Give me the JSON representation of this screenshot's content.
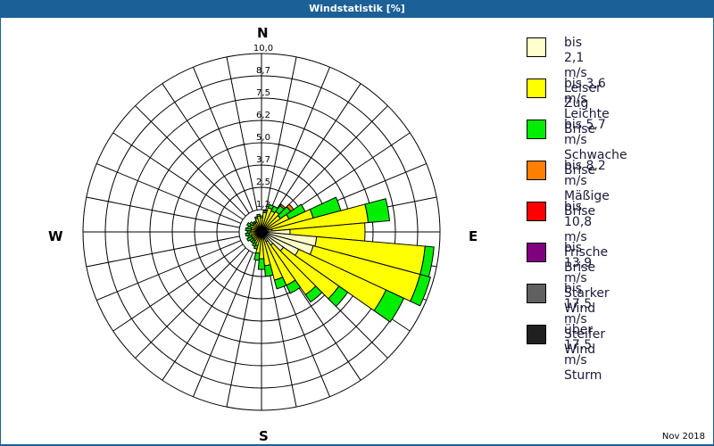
{
  "title": "Windstatistik [%]",
  "footer": {
    "date": "Nov 2018"
  },
  "compass": {
    "n": "N",
    "e": "E",
    "s": "S",
    "w": "W"
  },
  "legend": [
    {
      "line1": "bis 2,1 m/s",
      "line2": "Leiser Zug",
      "color": "#ffffcc"
    },
    {
      "line1": "bis 3,6 m/s",
      "line2": "Leichte Brise",
      "color": "#ffff00"
    },
    {
      "line1": "bis 5,7 m/s",
      "line2": "Schwache Brise",
      "color": "#00ee00"
    },
    {
      "line1": "bis 8,2 m/s",
      "line2": "Mäßige Brise",
      "color": "#ff8000"
    },
    {
      "line1": "bis 10,8 m/s",
      "line2": "Frische Brise",
      "color": "#ff0000"
    },
    {
      "line1": "bis 13,9 m/s",
      "line2": "Starker Wind",
      "color": "#800080"
    },
    {
      "line1": "bis 17,5 m/s",
      "line2": "Steifer Wind",
      "color": "#606060"
    },
    {
      "line1": "über 17,5 m/s",
      "line2": "Sturm",
      "color": "#202020"
    }
  ],
  "chart_data": {
    "type": "wind-rose",
    "title": "Windstatistik [%]",
    "unit": "%",
    "radial_ticks": [
      "1,2",
      "2,5",
      "3,7",
      "5,0",
      "6,2",
      "7,5",
      "8,7",
      "10,0"
    ],
    "radial_tick_values": [
      1.25,
      2.5,
      3.75,
      5.0,
      6.25,
      7.5,
      8.75,
      10.0
    ],
    "rmax": 10.0,
    "grid_spokes": 32,
    "sector_width_deg": 10,
    "classes": [
      "bis 2,1 m/s",
      "bis 3,6 m/s",
      "bis 5,7 m/s",
      "bis 8,2 m/s",
      "bis 10,8 m/s",
      "bis 13,9 m/s",
      "bis 17,5 m/s",
      "über 17,5 m/s"
    ],
    "colors": [
      "#ffffcc",
      "#ffff00",
      "#00ee00",
      "#ff8000",
      "#ff0000",
      "#800080",
      "#606060",
      "#202020"
    ],
    "sectors": [
      {
        "dir": 0,
        "values": [
          0.3,
          0.5,
          0.1,
          0,
          0,
          0,
          0,
          0
        ]
      },
      {
        "dir": 10,
        "values": [
          0.3,
          0.8,
          0.1,
          0,
          0,
          0,
          0,
          0
        ]
      },
      {
        "dir": 20,
        "values": [
          0.3,
          1.1,
          0.2,
          0,
          0,
          0,
          0,
          0
        ]
      },
      {
        "dir": 30,
        "values": [
          0.3,
          1.0,
          0.3,
          0,
          0,
          0,
          0,
          0
        ]
      },
      {
        "dir": 40,
        "values": [
          0.3,
          1.1,
          0.4,
          0.1,
          0,
          0,
          0,
          0
        ]
      },
      {
        "dir": 50,
        "values": [
          0.3,
          1.0,
          0.7,
          0.2,
          0,
          0,
          0,
          0
        ]
      },
      {
        "dir": 60,
        "values": [
          0.3,
          1.4,
          1.0,
          0,
          0,
          0,
          0,
          0
        ]
      },
      {
        "dir": 70,
        "values": [
          0.4,
          2.6,
          1.6,
          0,
          0,
          0,
          0,
          0
        ]
      },
      {
        "dir": 80,
        "values": [
          0.6,
          5.4,
          1.2,
          0,
          0,
          0,
          0,
          0
        ]
      },
      {
        "dir": 90,
        "values": [
          1.6,
          4.2,
          0.0,
          0,
          0,
          0,
          0,
          0
        ]
      },
      {
        "dir": 100,
        "values": [
          3.1,
          6.1,
          0.5,
          0,
          0,
          0,
          0,
          0
        ]
      },
      {
        "dir": 110,
        "values": [
          3.0,
          6.2,
          0.6,
          0,
          0,
          0,
          0,
          0
        ]
      },
      {
        "dir": 120,
        "values": [
          2.3,
          5.4,
          1.1,
          0,
          0,
          0,
          0,
          0
        ]
      },
      {
        "dir": 130,
        "values": [
          1.5,
          3.8,
          0.6,
          0,
          0,
          0,
          0,
          0
        ]
      },
      {
        "dir": 140,
        "values": [
          0.9,
          3.4,
          0.5,
          0,
          0,
          0,
          0,
          0
        ]
      },
      {
        "dir": 150,
        "values": [
          0.6,
          2.7,
          0.5,
          0,
          0,
          0,
          0,
          0
        ]
      },
      {
        "dir": 160,
        "values": [
          0.4,
          2.4,
          0.5,
          0,
          0,
          0,
          0,
          0
        ]
      },
      {
        "dir": 170,
        "values": [
          0.3,
          1.6,
          0.6,
          0,
          0,
          0,
          0,
          0
        ]
      },
      {
        "dir": 180,
        "values": [
          0.3,
          1.2,
          0.6,
          0,
          0,
          0,
          0,
          0
        ]
      },
      {
        "dir": 190,
        "values": [
          0.3,
          0.9,
          0.4,
          0,
          0,
          0,
          0,
          0
        ]
      },
      {
        "dir": 200,
        "values": [
          0.3,
          0.5,
          0.2,
          0,
          0,
          0,
          0,
          0
        ]
      },
      {
        "dir": 210,
        "values": [
          0.2,
          0.5,
          0.2,
          0,
          0,
          0,
          0,
          0
        ]
      },
      {
        "dir": 220,
        "values": [
          0.2,
          0.4,
          0.2,
          0,
          0,
          0,
          0,
          0
        ]
      },
      {
        "dir": 230,
        "values": [
          0.2,
          0.4,
          0.2,
          0,
          0,
          0,
          0,
          0
        ]
      },
      {
        "dir": 240,
        "values": [
          0.2,
          0.4,
          0.3,
          0,
          0,
          0,
          0,
          0
        ]
      },
      {
        "dir": 250,
        "values": [
          0.2,
          0.4,
          0.2,
          0,
          0,
          0,
          0,
          0
        ]
      },
      {
        "dir": 260,
        "values": [
          0.2,
          0.5,
          0.2,
          0,
          0,
          0,
          0,
          0
        ]
      },
      {
        "dir": 270,
        "values": [
          0.2,
          0.4,
          0.2,
          0,
          0,
          0,
          0,
          0
        ]
      },
      {
        "dir": 280,
        "values": [
          0.2,
          0.4,
          0.3,
          0,
          0,
          0,
          0,
          0
        ]
      },
      {
        "dir": 290,
        "values": [
          0.2,
          0.4,
          0.2,
          0,
          0,
          0,
          0,
          0
        ]
      },
      {
        "dir": 300,
        "values": [
          0.2,
          0.5,
          0.2,
          0,
          0,
          0,
          0,
          0
        ]
      },
      {
        "dir": 310,
        "values": [
          0.2,
          0.4,
          0.2,
          0,
          0,
          0,
          0,
          0
        ]
      },
      {
        "dir": 320,
        "values": [
          0.2,
          0.4,
          0.1,
          0,
          0,
          0,
          0,
          0
        ]
      },
      {
        "dir": 330,
        "values": [
          0.2,
          0.4,
          0.1,
          0,
          0,
          0,
          0,
          0
        ]
      },
      {
        "dir": 340,
        "values": [
          0.3,
          0.5,
          0.1,
          0,
          0,
          0,
          0,
          0
        ]
      },
      {
        "dir": 350,
        "values": [
          0.3,
          0.6,
          0.1,
          0,
          0,
          0,
          0,
          0
        ]
      }
    ],
    "legend_position": "right",
    "date_label": "Nov 2018"
  }
}
